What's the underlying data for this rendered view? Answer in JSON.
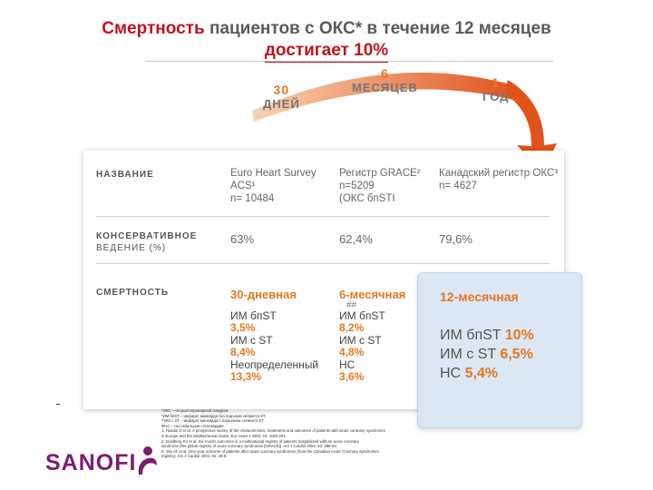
{
  "title": {
    "line1_highlight": "Смертность",
    "line1_rest": " пациентов с ОКС* в течение 12 месяцев",
    "line2": "достигает 10%"
  },
  "timeline": {
    "p1": {
      "num": "30",
      "label": "ДНЕЙ"
    },
    "p2": {
      "num": "6",
      "label": "МЕСЯЦЕВ"
    },
    "p3": {
      "num": "1",
      "label": "ГОД"
    }
  },
  "table": {
    "row_name": "НАЗВАНИЕ",
    "registries": [
      {
        "l1": "Euro Heart Survey",
        "l2": "ACS¹",
        "l3": "n= 10484"
      },
      {
        "l1": "Регистр GRACE²",
        "l2": "n=5209",
        "l3": "(ОКС бпSTI"
      },
      {
        "l1": "Канадский регистр ОКС³",
        "l2": "n= 4627",
        "l3": ""
      }
    ],
    "row_cons": "КОНСЕРВАТИВНОЕ",
    "row_cons2": "ВЕДЕНИЕ (%)",
    "cons_values": [
      "63%",
      "62,4%",
      "79,6%"
    ],
    "row_mort": "СМЕРТНОСТЬ",
    "col1": {
      "head": "30-дневная",
      "a": "ИМ бпST",
      "av": "3,5%",
      "b": "ИМ с ST",
      "bv": "8,4%",
      "c": "Неопределенный",
      "cv": "13,3%"
    },
    "col2": {
      "head": "6-месячная",
      "mark": "##",
      "a": "ИМ бпST",
      "av": "8,2%",
      "b": "ИМ с ST",
      "bv": "4,8%",
      "c": "НС",
      "cv": "3,6%"
    }
  },
  "year_box": {
    "head": "12-месячная",
    "a": "ИМ бпST",
    "av": "10%",
    "b": "ИМ с ST",
    "bv": "6,5%",
    "c": "НС",
    "cv": "5,4%"
  },
  "footnotes": [
    "*ОКС – острый коронарный синдром",
    "*ИМ бпST – инфаркт миокарда без подъема сегмента ST",
    "**ИМ с ST – инфаркт миокарда с подъемом сегмента ST",
    "ФНС – нестабильная стенокардия",
    "1. Hasdai D et al. A prospective survey of the characteristics, treatments and outcomes of patients with acute coronary syndromes",
    "in Europe and the Mediterranean basin. Eur Heart J 2002; 23: 1190-201.",
    "2. Goldberg RJ et al. Six-month outcomes in a multinational registry of patients hospitalized with an acute coronary",
    "syndrome (the global registry of acute coronary syndromes [GRACE]). Am J Cardiol 2004; 93: 288-93.",
    "3. Yan AT et al. One-year outcome of patients after acute coronary syndromes (from the Canadian Acute Coronary Syndromes",
    "registry). Am J Cardiol 2004; 94: 25-9."
  ],
  "logo": {
    "text": "SANOFI",
    "color": "#7d1d70"
  },
  "colors": {
    "accent": "#e87722",
    "title_red": "#c0131e",
    "box_blue": "#dbe7f3"
  }
}
